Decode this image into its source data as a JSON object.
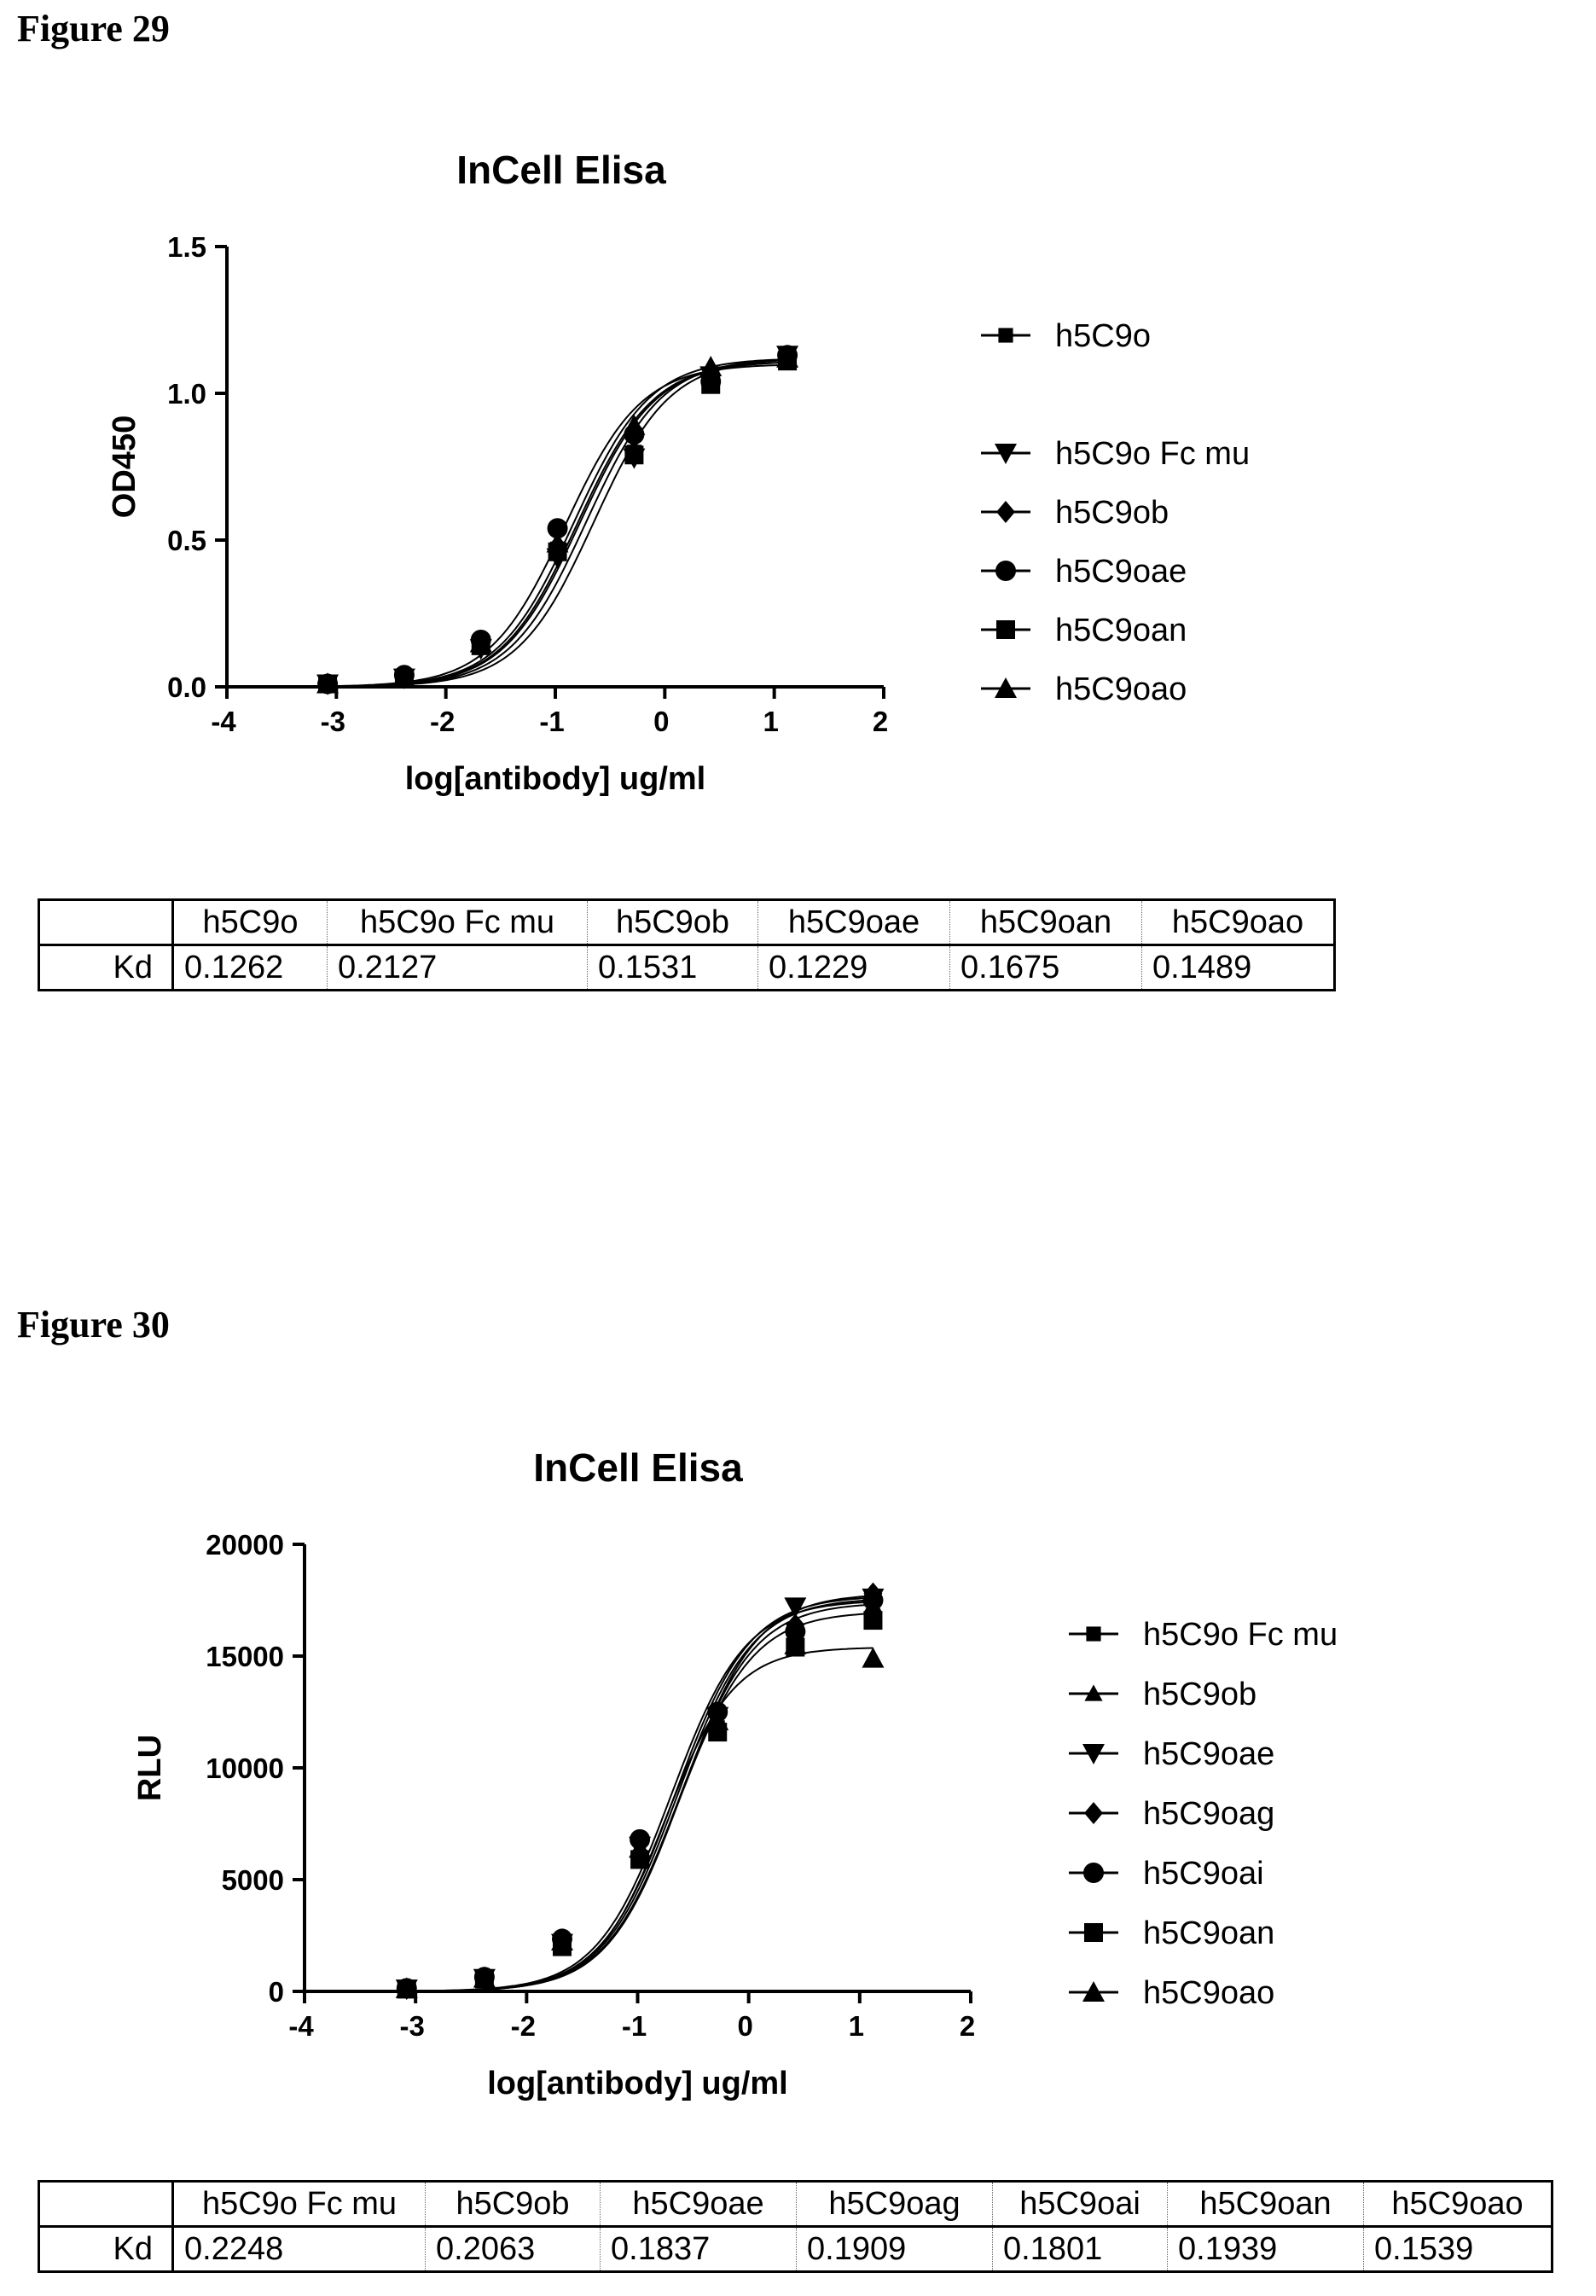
{
  "figures": [
    {
      "label": "Figure 29",
      "chart_data": {
        "type": "line",
        "title": "InCell Elisa",
        "xlabel": "log[antibody] ug/ml",
        "ylabel": "OD450",
        "xlim": [
          -4,
          2
        ],
        "ylim": [
          0,
          1.5
        ],
        "xticks": [
          -4,
          -3,
          -2,
          -1,
          0,
          1,
          2
        ],
        "xtick_labels": [
          "-4",
          "-3",
          "-2",
          "-1",
          "0",
          "1",
          "2"
        ],
        "yticks": [
          0,
          0.5,
          1.0,
          1.5
        ],
        "ytick_labels": [
          "0.0",
          "0.5",
          "1.0",
          "1.5"
        ],
        "grid": false,
        "legend": "right",
        "x": [
          -3.08,
          -2.38,
          -1.68,
          -0.98,
          -0.28,
          0.42,
          1.12
        ],
        "series": [
          {
            "name": "h5C9o",
            "marker": "square-small",
            "values": [
              0.01,
              0.03,
              0.14,
              0.47,
              0.8,
              1.05,
              1.12
            ],
            "curve": {
              "bottom": 0,
              "top": 1.12,
              "logec50": -0.72,
              "hill": 1.25
            }
          },
          {
            "name": "h5C9o Fc mu",
            "marker": "triangle-down",
            "values": [
              0.01,
              0.03,
              0.13,
              0.44,
              0.78,
              1.06,
              1.13
            ],
            "curve": {
              "bottom": 0,
              "top": 1.12,
              "logec50": -0.65,
              "hill": 1.25
            }
          },
          {
            "name": "h5C9ob",
            "marker": "diamond",
            "values": [
              0.01,
              0.03,
              0.15,
              0.48,
              0.85,
              1.05,
              1.12
            ],
            "curve": {
              "bottom": 0,
              "top": 1.11,
              "logec50": -0.8,
              "hill": 1.25
            }
          },
          {
            "name": "h5C9oae",
            "marker": "circle",
            "values": [
              0.01,
              0.04,
              0.16,
              0.54,
              0.86,
              1.04,
              1.13
            ],
            "curve": {
              "bottom": 0,
              "top": 1.1,
              "logec50": -0.91,
              "hill": 1.25
            }
          },
          {
            "name": "h5C9oan",
            "marker": "square",
            "values": [
              0.01,
              0.03,
              0.14,
              0.46,
              0.79,
              1.03,
              1.11
            ],
            "curve": {
              "bottom": 0,
              "top": 1.11,
              "logec50": -0.78,
              "hill": 1.25
            }
          },
          {
            "name": "h5C9oao",
            "marker": "triangle-up",
            "values": [
              0.01,
              0.03,
              0.15,
              0.49,
              0.89,
              1.09,
              1.12
            ],
            "curve": {
              "bottom": 0,
              "top": 1.12,
              "logec50": -0.83,
              "hill": 1.25
            }
          }
        ]
      },
      "table": {
        "row_label": "Kd",
        "columns": [
          "h5C9o",
          "h5C9o Fc mu",
          "h5C9ob",
          "h5C9oae",
          "h5C9oan",
          "h5C9oao"
        ],
        "values": [
          "0.1262",
          "0.2127",
          "0.1531",
          "0.1229",
          "0.1675",
          "0.1489"
        ]
      }
    },
    {
      "label": "Figure 30",
      "chart_data": {
        "type": "line",
        "title": "InCell Elisa",
        "xlabel": "log[antibody] ug/ml",
        "ylabel": "RLU",
        "xlim": [
          -4,
          2
        ],
        "ylim": [
          0,
          20000
        ],
        "xticks": [
          -4,
          -3,
          -2,
          -1,
          0,
          1,
          2
        ],
        "xtick_labels": [
          "-4",
          "-3",
          "-2",
          "-1",
          "0",
          "1",
          "2"
        ],
        "yticks": [
          0,
          5000,
          10000,
          15000,
          20000
        ],
        "ytick_labels": [
          "0",
          "5000",
          "10000",
          "15000",
          "20000"
        ],
        "grid": false,
        "legend": "right",
        "x": [
          -3.08,
          -2.38,
          -1.68,
          -0.98,
          -0.28,
          0.42,
          1.12
        ],
        "series": [
          {
            "name": "h5C9o Fc mu",
            "marker": "square-small",
            "values": [
              100,
              550,
              2100,
              6000,
              11800,
              15600,
              16800
            ],
            "curve": {
              "bottom": 0,
              "top": 17400,
              "logec50": -0.62,
              "hill": 1.3
            }
          },
          {
            "name": "h5C9ob",
            "marker": "triangle-up-small",
            "values": [
              120,
              600,
              2200,
              6300,
              12000,
              15800,
              17300
            ],
            "curve": {
              "bottom": 0,
              "top": 17600,
              "logec50": -0.64,
              "hill": 1.3
            }
          },
          {
            "name": "h5C9oae",
            "marker": "triangle-down",
            "values": [
              110,
              580,
              2150,
              6500,
              12300,
              17200,
              17600
            ],
            "curve": {
              "bottom": 0,
              "top": 17800,
              "logec50": -0.6,
              "hill": 1.3
            }
          },
          {
            "name": "h5C9oag",
            "marker": "diamond",
            "values": [
              130,
              620,
              2300,
              6600,
              12400,
              16400,
              17800
            ],
            "curve": {
              "bottom": 0,
              "top": 17700,
              "logec50": -0.66,
              "hill": 1.3
            }
          },
          {
            "name": "h5C9oai",
            "marker": "circle",
            "values": [
              140,
              640,
              2350,
              6800,
              12500,
              16100,
              17500
            ],
            "curve": {
              "bottom": 0,
              "top": 17500,
              "logec50": -0.7,
              "hill": 1.3
            }
          },
          {
            "name": "h5C9oan",
            "marker": "square",
            "values": [
              100,
              560,
              2000,
              5900,
              11600,
              15400,
              16600
            ],
            "curve": {
              "bottom": 0,
              "top": 17000,
              "logec50": -0.63,
              "hill": 1.3
            }
          },
          {
            "name": "h5C9oao",
            "marker": "triangle-up",
            "values": [
              120,
              590,
              2250,
              6400,
              12100,
              15500,
              14900
            ],
            "curve": {
              "bottom": 0,
              "top": 15400,
              "logec50": -0.75,
              "hill": 1.4
            }
          }
        ]
      },
      "table": {
        "row_label": "Kd",
        "columns": [
          "h5C9o Fc mu",
          "h5C9ob",
          "h5C9oae",
          "h5C9oag",
          "h5C9oai",
          "h5C9oan",
          "h5C9oao"
        ],
        "values": [
          "0.2248",
          "0.2063",
          "0.1837",
          "0.1909",
          "0.1801",
          "0.1939",
          "0.1539"
        ]
      }
    }
  ]
}
